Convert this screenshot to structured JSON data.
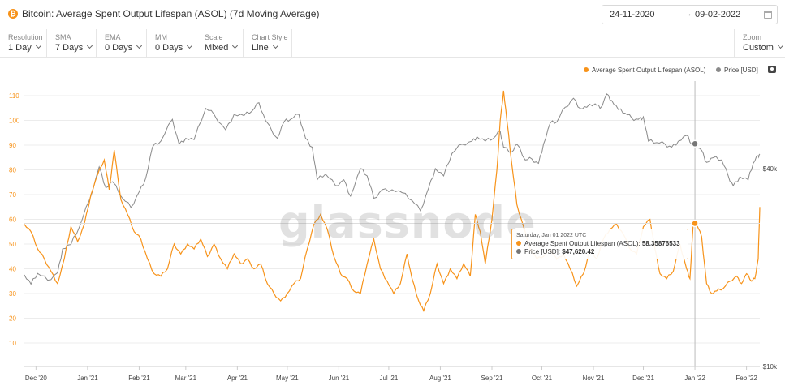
{
  "header": {
    "title": "Bitcoin: Average Spent Output Lifespan (ASOL) (7d Moving Average)",
    "coin_icon": "bitcoin-icon",
    "date_start": "24-11-2020",
    "date_end": "09-02-2022",
    "date_arrow": "→",
    "calendar_icon": "calendar-icon"
  },
  "controls": [
    {
      "label": "Resolution",
      "value": "1 Day"
    },
    {
      "label": "SMA",
      "value": "7 Days"
    },
    {
      "label": "EMA",
      "value": "0 Days"
    },
    {
      "label": "MM",
      "value": "0 Days"
    },
    {
      "label": "Scale",
      "value": "Mixed"
    },
    {
      "label": "Chart Style",
      "value": "Line"
    }
  ],
  "zoom": {
    "label": "Zoom",
    "value": "Custom"
  },
  "legend": {
    "asol": "Average Spent Output Lifespan (ASOL)",
    "price": "Price [USD]",
    "camera_icon": "camera-icon"
  },
  "watermark": "glassnode",
  "tooltip": {
    "date": "Saturday, Jan 01 2022 UTC",
    "asol_label": "Average Spent Output Lifespan (ASOL):",
    "asol_value": "58.35876533",
    "price_label": "Price [USD]:",
    "price_value": "$47,620.42"
  },
  "colors": {
    "asol": "#f7931a",
    "price": "#8a8a8a",
    "grid": "#ececec",
    "tooltip_border": "#f0a040"
  },
  "chart_data": {
    "type": "line",
    "title": "Bitcoin: Average Spent Output Lifespan (ASOL) (7d Moving Average)",
    "xlabel": "",
    "ylabel": "",
    "x_range": [
      "2020-11-24",
      "2022-02-09"
    ],
    "x_ticks": [
      "Dec '20",
      "Jan '21",
      "Feb '21",
      "Mar '21",
      "Apr '21",
      "May '21",
      "Jun '21",
      "Jul '21",
      "Aug '21",
      "Sep '21",
      "Oct '21",
      "Nov '21",
      "Dec '21",
      "Jan '22",
      "Feb '22"
    ],
    "y_left": {
      "ticks": [
        10,
        20,
        30,
        40,
        50,
        60,
        70,
        80,
        90,
        100,
        110
      ],
      "range": [
        10,
        110
      ],
      "unit": "days"
    },
    "y_right": {
      "ticks": [
        "$10k",
        "$40k"
      ],
      "scale": "log",
      "range": [
        10000,
        70000
      ]
    },
    "grid": true,
    "legend_position": "top-right",
    "hover_date": "2022-01-01",
    "series": [
      {
        "name": "Average Spent Output Lifespan (ASOL)",
        "axis": "left",
        "points": [
          [
            "2020-11-24",
            58
          ],
          [
            "2020-11-28",
            55
          ],
          [
            "2020-12-02",
            48
          ],
          [
            "2020-12-06",
            44
          ],
          [
            "2020-12-10",
            39
          ],
          [
            "2020-12-14",
            34
          ],
          [
            "2020-12-18",
            44
          ],
          [
            "2020-12-22",
            57
          ],
          [
            "2020-12-26",
            51
          ],
          [
            "2020-12-30",
            58
          ],
          [
            "2021-01-03",
            70
          ],
          [
            "2021-01-07",
            78
          ],
          [
            "2021-01-11",
            84
          ],
          [
            "2021-01-14",
            72
          ],
          [
            "2021-01-17",
            88
          ],
          [
            "2021-01-21",
            68
          ],
          [
            "2021-01-25",
            62
          ],
          [
            "2021-01-29",
            55
          ],
          [
            "2021-02-02",
            52
          ],
          [
            "2021-02-06",
            44
          ],
          [
            "2021-02-10",
            38
          ],
          [
            "2021-02-14",
            37
          ],
          [
            "2021-02-18",
            40
          ],
          [
            "2021-02-22",
            50
          ],
          [
            "2021-02-26",
            46
          ],
          [
            "2021-03-02",
            50
          ],
          [
            "2021-03-06",
            48
          ],
          [
            "2021-03-10",
            52
          ],
          [
            "2021-03-14",
            45
          ],
          [
            "2021-03-18",
            50
          ],
          [
            "2021-03-22",
            44
          ],
          [
            "2021-03-26",
            40
          ],
          [
            "2021-03-30",
            46
          ],
          [
            "2021-04-03",
            42
          ],
          [
            "2021-04-07",
            44
          ],
          [
            "2021-04-11",
            40
          ],
          [
            "2021-04-15",
            42
          ],
          [
            "2021-04-19",
            34
          ],
          [
            "2021-04-23",
            30
          ],
          [
            "2021-04-27",
            27
          ],
          [
            "2021-05-01",
            30
          ],
          [
            "2021-05-05",
            34
          ],
          [
            "2021-05-09",
            36
          ],
          [
            "2021-05-13",
            48
          ],
          [
            "2021-05-17",
            58
          ],
          [
            "2021-05-21",
            62
          ],
          [
            "2021-05-25",
            56
          ],
          [
            "2021-05-29",
            45
          ],
          [
            "2021-06-02",
            38
          ],
          [
            "2021-06-06",
            36
          ],
          [
            "2021-06-10",
            31
          ],
          [
            "2021-06-14",
            30
          ],
          [
            "2021-06-18",
            42
          ],
          [
            "2021-06-22",
            52
          ],
          [
            "2021-06-26",
            40
          ],
          [
            "2021-06-30",
            35
          ],
          [
            "2021-07-04",
            30
          ],
          [
            "2021-07-08",
            34
          ],
          [
            "2021-07-12",
            46
          ],
          [
            "2021-07-15",
            36
          ],
          [
            "2021-07-19",
            27
          ],
          [
            "2021-07-22",
            23
          ],
          [
            "2021-07-26",
            30
          ],
          [
            "2021-07-30",
            42
          ],
          [
            "2021-08-03",
            34
          ],
          [
            "2021-08-07",
            40
          ],
          [
            "2021-08-11",
            36
          ],
          [
            "2021-08-15",
            42
          ],
          [
            "2021-08-19",
            37
          ],
          [
            "2021-08-22",
            62
          ],
          [
            "2021-08-25",
            55
          ],
          [
            "2021-08-28",
            42
          ],
          [
            "2021-09-01",
            60
          ],
          [
            "2021-09-04",
            80
          ],
          [
            "2021-09-06",
            100
          ],
          [
            "2021-09-08",
            112
          ],
          [
            "2021-09-10",
            100
          ],
          [
            "2021-09-13",
            82
          ],
          [
            "2021-09-16",
            66
          ],
          [
            "2021-09-20",
            57
          ],
          [
            "2021-09-24",
            48
          ],
          [
            "2021-09-28",
            44
          ],
          [
            "2021-10-02",
            45
          ],
          [
            "2021-10-06",
            48
          ],
          [
            "2021-10-10",
            44
          ],
          [
            "2021-10-14",
            46
          ],
          [
            "2021-10-18",
            40
          ],
          [
            "2021-10-22",
            33
          ],
          [
            "2021-10-26",
            38
          ],
          [
            "2021-10-30",
            48
          ],
          [
            "2021-11-03",
            44
          ],
          [
            "2021-11-07",
            52
          ],
          [
            "2021-11-11",
            56
          ],
          [
            "2021-11-15",
            58
          ],
          [
            "2021-11-19",
            54
          ],
          [
            "2021-11-23",
            48
          ],
          [
            "2021-11-27",
            46
          ],
          [
            "2021-12-01",
            57
          ],
          [
            "2021-12-05",
            60
          ],
          [
            "2021-12-08",
            48
          ],
          [
            "2021-12-11",
            38
          ],
          [
            "2021-12-15",
            36
          ],
          [
            "2021-12-19",
            39
          ],
          [
            "2021-12-23",
            50
          ],
          [
            "2021-12-27",
            40
          ],
          [
            "2021-12-29",
            36
          ],
          [
            "2021-12-31",
            58.35876533
          ],
          [
            "2022-01-02",
            58
          ],
          [
            "2022-01-05",
            53
          ],
          [
            "2022-01-08",
            34
          ],
          [
            "2022-01-11",
            30
          ],
          [
            "2022-01-14",
            31
          ],
          [
            "2022-01-18",
            32
          ],
          [
            "2022-01-22",
            35
          ],
          [
            "2022-01-26",
            37
          ],
          [
            "2022-01-29",
            34
          ],
          [
            "2022-02-01",
            38
          ],
          [
            "2022-02-04",
            35
          ],
          [
            "2022-02-06",
            36
          ],
          [
            "2022-02-08",
            44
          ],
          [
            "2022-02-09",
            65
          ]
        ]
      },
      {
        "name": "Price [USD]",
        "axis": "right",
        "points": [
          [
            "2020-11-24",
            19000
          ],
          [
            "2020-11-28",
            17800
          ],
          [
            "2020-12-02",
            19200
          ],
          [
            "2020-12-08",
            18300
          ],
          [
            "2020-12-14",
            19300
          ],
          [
            "2020-12-17",
            22800
          ],
          [
            "2020-12-22",
            23500
          ],
          [
            "2020-12-27",
            26500
          ],
          [
            "2021-01-02",
            32000
          ],
          [
            "2021-01-08",
            40500
          ],
          [
            "2021-01-12",
            35000
          ],
          [
            "2021-01-16",
            36500
          ],
          [
            "2021-01-22",
            32500
          ],
          [
            "2021-01-27",
            30500
          ],
          [
            "2021-02-01",
            34000
          ],
          [
            "2021-02-05",
            37500
          ],
          [
            "2021-02-09",
            46500
          ],
          [
            "2021-02-14",
            48500
          ],
          [
            "2021-02-21",
            56500
          ],
          [
            "2021-02-25",
            47500
          ],
          [
            "2021-03-01",
            49500
          ],
          [
            "2021-03-06",
            49000
          ],
          [
            "2021-03-13",
            61000
          ],
          [
            "2021-03-18",
            58500
          ],
          [
            "2021-03-25",
            52500
          ],
          [
            "2021-03-30",
            58500
          ],
          [
            "2021-04-05",
            58000
          ],
          [
            "2021-04-10",
            60000
          ],
          [
            "2021-04-14",
            63500
          ],
          [
            "2021-04-18",
            56000
          ],
          [
            "2021-04-25",
            49500
          ],
          [
            "2021-04-29",
            55500
          ],
          [
            "2021-05-03",
            56500
          ],
          [
            "2021-05-08",
            58500
          ],
          [
            "2021-05-12",
            49500
          ],
          [
            "2021-05-16",
            46500
          ],
          [
            "2021-05-19",
            37000
          ],
          [
            "2021-05-24",
            38500
          ],
          [
            "2021-05-30",
            35500
          ],
          [
            "2021-06-04",
            37000
          ],
          [
            "2021-06-08",
            33000
          ],
          [
            "2021-06-14",
            40000
          ],
          [
            "2021-06-18",
            38000
          ],
          [
            "2021-06-22",
            32500
          ],
          [
            "2021-06-27",
            34500
          ],
          [
            "2021-07-03",
            34500
          ],
          [
            "2021-07-09",
            33800
          ],
          [
            "2021-07-15",
            32000
          ],
          [
            "2021-07-20",
            29800
          ],
          [
            "2021-07-25",
            35000
          ],
          [
            "2021-07-29",
            40000
          ],
          [
            "2021-08-03",
            38000
          ],
          [
            "2021-08-08",
            44500
          ],
          [
            "2021-08-14",
            47500
          ],
          [
            "2021-08-20",
            48500
          ],
          [
            "2021-08-23",
            50000
          ],
          [
            "2021-08-28",
            48500
          ],
          [
            "2021-09-02",
            49500
          ],
          [
            "2021-09-06",
            52000
          ],
          [
            "2021-09-08",
            46500
          ],
          [
            "2021-09-13",
            45000
          ],
          [
            "2021-09-16",
            47500
          ],
          [
            "2021-09-21",
            42500
          ],
          [
            "2021-09-25",
            42800
          ],
          [
            "2021-09-29",
            41500
          ],
          [
            "2021-10-02",
            47500
          ],
          [
            "2021-10-06",
            55000
          ],
          [
            "2021-10-10",
            55500
          ],
          [
            "2021-10-15",
            61500
          ],
          [
            "2021-10-20",
            65500
          ],
          [
            "2021-10-24",
            61000
          ],
          [
            "2021-10-28",
            61500
          ],
          [
            "2021-11-02",
            63000
          ],
          [
            "2021-11-05",
            61000
          ],
          [
            "2021-11-09",
            67500
          ],
          [
            "2021-11-12",
            64500
          ],
          [
            "2021-11-16",
            60500
          ],
          [
            "2021-11-20",
            59000
          ],
          [
            "2021-11-24",
            57000
          ],
          [
            "2021-11-28",
            56500
          ],
          [
            "2021-12-01",
            57500
          ],
          [
            "2021-12-04",
            48500
          ],
          [
            "2021-12-09",
            48000
          ],
          [
            "2021-12-14",
            47500
          ],
          [
            "2021-12-18",
            46500
          ],
          [
            "2021-12-22",
            48500
          ],
          [
            "2021-12-27",
            50500
          ],
          [
            "2021-12-30",
            47500
          ],
          [
            "2022-01-01",
            47620.42
          ],
          [
            "2022-01-05",
            45500
          ],
          [
            "2022-01-08",
            41800
          ],
          [
            "2022-01-12",
            43200
          ],
          [
            "2022-01-17",
            42500
          ],
          [
            "2022-01-21",
            38000
          ],
          [
            "2022-01-24",
            35500
          ],
          [
            "2022-01-28",
            37800
          ],
          [
            "2022-02-02",
            37000
          ],
          [
            "2022-02-05",
            41500
          ],
          [
            "2022-02-08",
            43800
          ],
          [
            "2022-02-09",
            44300
          ]
        ]
      }
    ]
  }
}
